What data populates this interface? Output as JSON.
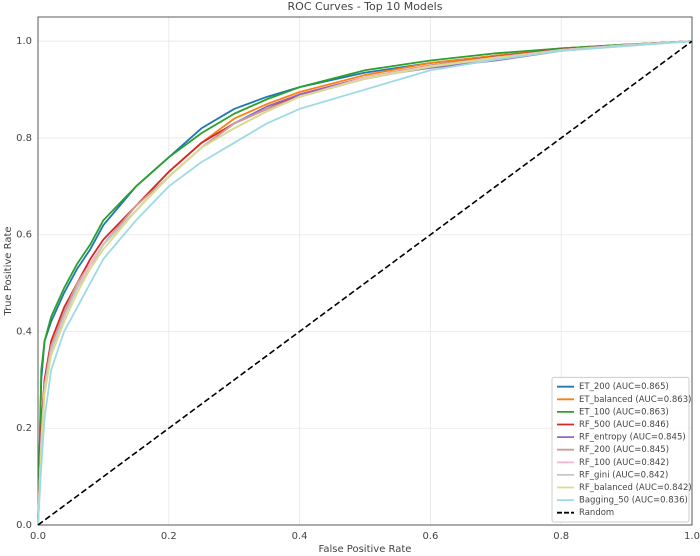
{
  "chart_data": {
    "type": "line",
    "title": "ROC Curves - Top 10 Models",
    "x_label": "False Positive Rate",
    "y_label": "True Positive Rate",
    "x": [
      0,
      0.005,
      0.01,
      0.02,
      0.04,
      0.06,
      0.08,
      0.1,
      0.15,
      0.2,
      0.25,
      0.3,
      0.35,
      0.4,
      0.5,
      0.6,
      0.7,
      0.8,
      0.9,
      1.0
    ],
    "xlim": [
      0,
      1
    ],
    "ylim": [
      0,
      1.05
    ],
    "xticks": [
      {
        "value": 0,
        "label": "0.0"
      },
      0.2,
      0.4,
      0.6,
      0.8,
      {
        "value": 1,
        "label": "1.0"
      }
    ],
    "yticks": [
      {
        "value": 0,
        "label": "0.0"
      },
      0.2,
      0.4,
      0.6,
      0.8,
      {
        "value": 1,
        "label": "1.0"
      }
    ],
    "grid": true,
    "legend": "lower right",
    "series": [
      {
        "name": "ET_200 (AUC=0.865)",
        "color": "#1f77b4",
        "values": [
          0,
          0.3,
          0.38,
          0.42,
          0.48,
          0.53,
          0.57,
          0.62,
          0.7,
          0.76,
          0.82,
          0.86,
          0.885,
          0.905,
          0.935,
          0.955,
          0.97,
          0.985,
          0.993,
          1
        ]
      },
      {
        "name": "ET_balanced (AUC=0.863)",
        "color": "#ff7f0e",
        "values": [
          0,
          0.2,
          0.3,
          0.37,
          0.44,
          0.49,
          0.54,
          0.58,
          0.66,
          0.73,
          0.79,
          0.84,
          0.87,
          0.895,
          0.93,
          0.955,
          0.97,
          0.985,
          0.993,
          1
        ]
      },
      {
        "name": "ET_100 (AUC=0.863)",
        "color": "#2ca02c",
        "values": [
          0,
          0.32,
          0.38,
          0.43,
          0.49,
          0.54,
          0.58,
          0.63,
          0.7,
          0.76,
          0.81,
          0.85,
          0.88,
          0.905,
          0.94,
          0.96,
          0.975,
          0.985,
          0.993,
          1
        ]
      },
      {
        "name": "RF_500 (AUC=0.846)",
        "color": "#d62728",
        "values": [
          0,
          0.2,
          0.3,
          0.38,
          0.45,
          0.5,
          0.55,
          0.59,
          0.66,
          0.73,
          0.79,
          0.83,
          0.86,
          0.89,
          0.925,
          0.95,
          0.968,
          0.983,
          0.992,
          1
        ]
      },
      {
        "name": "RF_entropy (AUC=0.845)",
        "color": "#9467bd",
        "values": [
          0,
          0.18,
          0.28,
          0.36,
          0.44,
          0.49,
          0.54,
          0.58,
          0.65,
          0.72,
          0.78,
          0.83,
          0.865,
          0.89,
          0.925,
          0.945,
          0.96,
          0.98,
          0.992,
          1
        ]
      },
      {
        "name": "RF_200 (AUC=0.845)",
        "color": "#c7a09a",
        "values": [
          0,
          0.18,
          0.29,
          0.37,
          0.44,
          0.5,
          0.54,
          0.58,
          0.66,
          0.72,
          0.78,
          0.83,
          0.86,
          0.885,
          0.925,
          0.95,
          0.967,
          0.982,
          0.992,
          1
        ]
      },
      {
        "name": "RF_100 (AUC=0.842)",
        "color": "#f7b6d2",
        "values": [
          0,
          0.17,
          0.28,
          0.36,
          0.43,
          0.49,
          0.54,
          0.58,
          0.65,
          0.72,
          0.78,
          0.82,
          0.855,
          0.885,
          0.925,
          0.948,
          0.965,
          0.982,
          0.992,
          1
        ]
      },
      {
        "name": "RF_gini (AUC=0.842)",
        "color": "#c7c7c7",
        "values": [
          0,
          0.17,
          0.28,
          0.36,
          0.43,
          0.49,
          0.53,
          0.58,
          0.65,
          0.72,
          0.78,
          0.82,
          0.855,
          0.885,
          0.922,
          0.947,
          0.965,
          0.982,
          0.992,
          1
        ]
      },
      {
        "name": "RF_balanced (AUC=0.842)",
        "color": "#dbdb8d",
        "values": [
          0,
          0.16,
          0.27,
          0.35,
          0.42,
          0.48,
          0.53,
          0.57,
          0.65,
          0.72,
          0.78,
          0.82,
          0.855,
          0.885,
          0.923,
          0.948,
          0.966,
          0.98,
          0.99,
          1
        ]
      },
      {
        "name": "Bagging_50 (AUC=0.836)",
        "color": "#9edae5",
        "values": [
          0,
          0.12,
          0.22,
          0.32,
          0.4,
          0.45,
          0.5,
          0.55,
          0.63,
          0.7,
          0.75,
          0.79,
          0.83,
          0.86,
          0.9,
          0.94,
          0.962,
          0.98,
          0.99,
          1
        ]
      },
      {
        "name": "Random",
        "color": "#000000",
        "linestyle": "dashed",
        "values": [
          0,
          0.005,
          0.01,
          0.02,
          0.04,
          0.06,
          0.08,
          0.1,
          0.15,
          0.2,
          0.25,
          0.3,
          0.35,
          0.4,
          0.5,
          0.6,
          0.7,
          0.8,
          0.9,
          1.0
        ]
      }
    ]
  }
}
